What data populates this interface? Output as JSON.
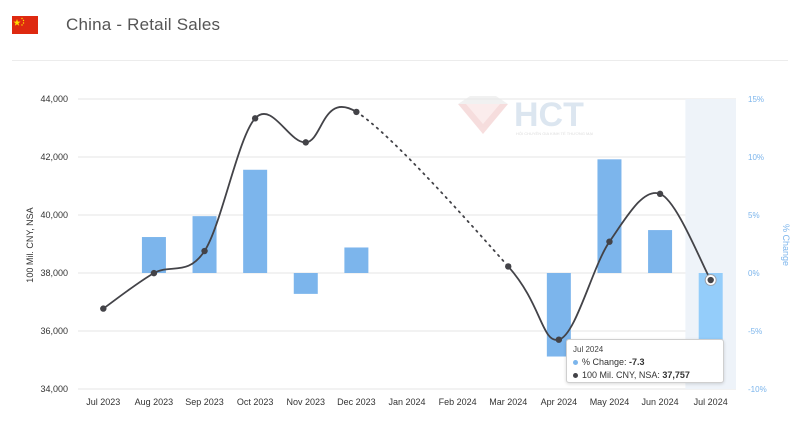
{
  "header": {
    "title": "China - Retail Sales",
    "flag_icon": "china-flag-icon"
  },
  "watermark": {
    "brand": "HCT",
    "tagline": "HỘI CHUYÊN GIA KINH TẾ THƯƠNG MẠI"
  },
  "colors": {
    "bar": "#7cb5ec",
    "bar_highlight": "#94cdfa",
    "line": "#434348",
    "right_axis": "#7cb5ec",
    "flag_red": "#de2910",
    "flag_star": "#ffde00"
  },
  "chart_data": {
    "type": "bar",
    "categories": [
      "Jul 2023",
      "Aug 2023",
      "Sep 2023",
      "Oct 2023",
      "Nov 2023",
      "Dec 2023",
      "Jan 2024",
      "Feb 2024",
      "Mar 2024",
      "Apr 2024",
      "May 2024",
      "Jun 2024",
      "Jul 2024"
    ],
    "series": [
      {
        "name": "% Change",
        "type": "bar",
        "axis": "right",
        "values": [
          null,
          3.1,
          4.9,
          8.9,
          -1.8,
          2.2,
          null,
          null,
          null,
          -7.2,
          9.8,
          3.7,
          -7.3
        ]
      },
      {
        "name": "100 Mil. CNY, NSA",
        "type": "line",
        "axis": "left",
        "values": [
          36772,
          37996,
          38758,
          43333,
          42504,
          43555,
          null,
          null,
          38226,
          35700,
          39080,
          40730,
          37757
        ],
        "dotted_gap_between": [
          "Dec 2023",
          "Mar 2024"
        ]
      }
    ],
    "ylabel": "100 Mil. CNY, NSA",
    "ylabel_right": "% Change",
    "ylim": [
      34000,
      44000
    ],
    "yticks": [
      "34,000",
      "36,000",
      "38,000",
      "40,000",
      "42,000",
      "44,000"
    ],
    "ylim_right": [
      -10,
      15
    ],
    "yticks_right": [
      "-10%",
      "-5%",
      "0%",
      "5%",
      "10%",
      "15%"
    ],
    "highlighted_category": "Jul 2024",
    "grid": true,
    "tooltip": {
      "title": "Jul 2024",
      "rows": [
        {
          "label": "% Change: ",
          "value": "-7.3"
        },
        {
          "label": "100 Mil. CNY, NSA: ",
          "value": "37,757"
        }
      ]
    }
  }
}
